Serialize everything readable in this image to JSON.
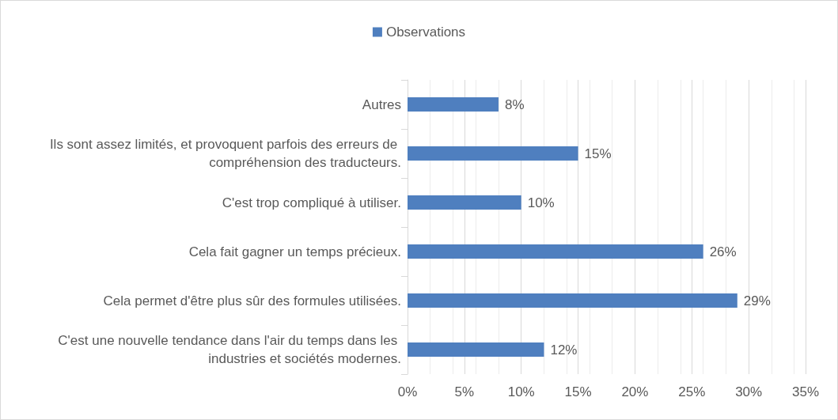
{
  "chart_data": {
    "type": "bar",
    "orientation": "horizontal",
    "categories": [
      "Autres",
      "Ils sont assez limités, et provoquent parfois des erreurs de compréhension des traducteurs.",
      "C'est trop compliqué à utiliser.",
      "Cela fait gagner un temps précieux.",
      "Cela permet d'être plus sûr des formules utilisées.",
      "C'est une nouvelle tendance dans l'air du temps dans les industries et sociétés modernes."
    ],
    "series": [
      {
        "name": "Observations",
        "color": "#4f7fbf",
        "values": [
          8,
          15,
          10,
          26,
          29,
          12
        ],
        "value_labels": [
          "8%",
          "15%",
          "10%",
          "26%",
          "29%",
          "12%"
        ]
      }
    ],
    "xlim": [
      0,
      35
    ],
    "xticks": [
      {
        "value": 0,
        "label": "0%"
      },
      {
        "value": 5,
        "label": "5%"
      },
      {
        "value": 10,
        "label": "10%"
      },
      {
        "value": 15,
        "label": "15%"
      },
      {
        "value": 20,
        "label": "20%"
      },
      {
        "value": 25,
        "label": "25%"
      },
      {
        "value": 30,
        "label": "30%"
      },
      {
        "value": 35,
        "label": "35%"
      }
    ],
    "grid": "x",
    "legend": "top"
  }
}
